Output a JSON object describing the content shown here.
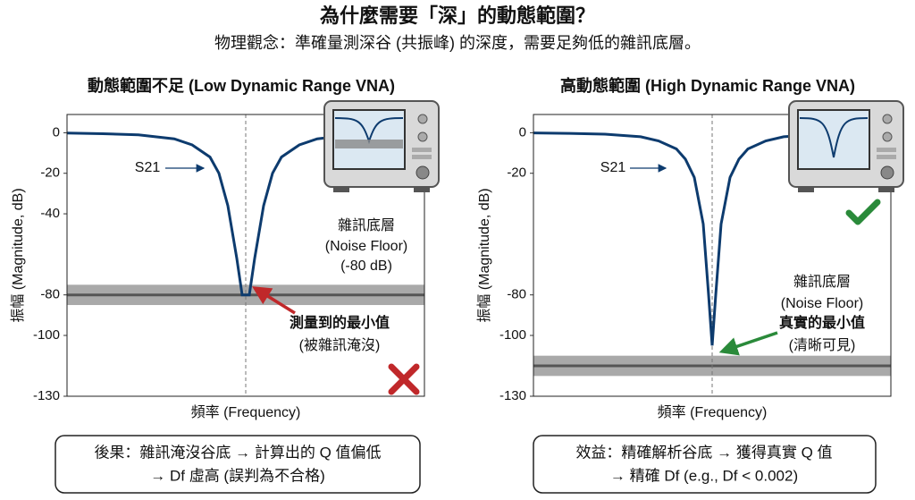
{
  "header": {
    "title": "為什麼需要「深」的動態範圍？",
    "subtitle": "物理觀念：準確量測深谷 (共振峰) 的深度，需要足夠低的雜訊底層。"
  },
  "chart_data": [
    {
      "type": "line",
      "title": "動態範圍不足 (Low Dynamic Range VNA)",
      "x_label": "頻率 (Frequency)",
      "y_label": "振幅 (Magnitude, dB)",
      "x": [
        -1,
        -0.8,
        -0.6,
        -0.4,
        -0.3,
        -0.2,
        -0.15,
        -0.1,
        -0.05,
        -0.02,
        0,
        0.02,
        0.05,
        0.1,
        0.15,
        0.2,
        0.3,
        0.4,
        0.6,
        0.8,
        1
      ],
      "xlim": [
        -1,
        1
      ],
      "ylim": [
        -130,
        9
      ],
      "yticks": [
        0,
        -20,
        -40,
        -80,
        -100,
        -130
      ],
      "series": [
        {
          "name": "S21",
          "color": "#0d3b6e",
          "values": [
            -0.2,
            -0.5,
            -1,
            -3,
            -6,
            -12,
            -20,
            -36,
            -62,
            -80,
            -80,
            -80,
            -62,
            -36,
            -20,
            -12,
            -6,
            -3,
            -1,
            -0.5,
            -0.2
          ]
        }
      ],
      "noise": {
        "level": -80,
        "spread": 5,
        "color": "#8c8c8c"
      },
      "annotations": [
        {
          "text": "雜訊底層"
        },
        {
          "text": "(Noise Floor)"
        },
        {
          "text": "(-80 dB)"
        },
        {
          "text": "測量到的最小值",
          "color": "#a51d1d"
        },
        {
          "text": "(被雜訊淹沒)"
        }
      ]
    },
    {
      "type": "line",
      "title": "高動態範圍 (High Dynamic Range VNA)",
      "x_label": "頻率 (Frequency)",
      "y_label": "振幅 (Magnitude, dB)",
      "x": [
        -1,
        -0.8,
        -0.6,
        -0.4,
        -0.3,
        -0.2,
        -0.15,
        -0.1,
        -0.05,
        -0.02,
        0,
        0.02,
        0.05,
        0.1,
        0.15,
        0.2,
        0.3,
        0.4,
        0.6,
        0.8,
        1
      ],
      "xlim": [
        -1,
        1
      ],
      "ylim": [
        -130,
        9
      ],
      "yticks": [
        0,
        -20,
        -80,
        -100,
        -130
      ],
      "series": [
        {
          "name": "S21",
          "color": "#0d3b6e",
          "values": [
            -0.1,
            -0.3,
            -0.7,
            -2,
            -4,
            -8,
            -13,
            -22,
            -45,
            -80,
            -105,
            -80,
            -45,
            -22,
            -13,
            -8,
            -4,
            -2,
            -0.7,
            -0.3,
            -0.1
          ]
        }
      ],
      "noise": {
        "level": -115,
        "spread": 5,
        "color": "#8c8c8c"
      },
      "annotations": [
        {
          "text": "雜訊底層"
        },
        {
          "text": "(Noise Floor)"
        },
        {
          "text": "真實的最小值",
          "color": "#2a8a3a"
        },
        {
          "text": "(清晰可見)"
        }
      ]
    }
  ],
  "notes": [
    [
      "後果：雜訊淹沒谷底 → 計算出的 Q 值偏低",
      "→ Df 虛高 (誤判為不合格)"
    ],
    [
      "效益：精確解析谷底 → 獲得真實 Q 值",
      "→ 精確 Df (e.g., Df < 0.002)"
    ]
  ]
}
